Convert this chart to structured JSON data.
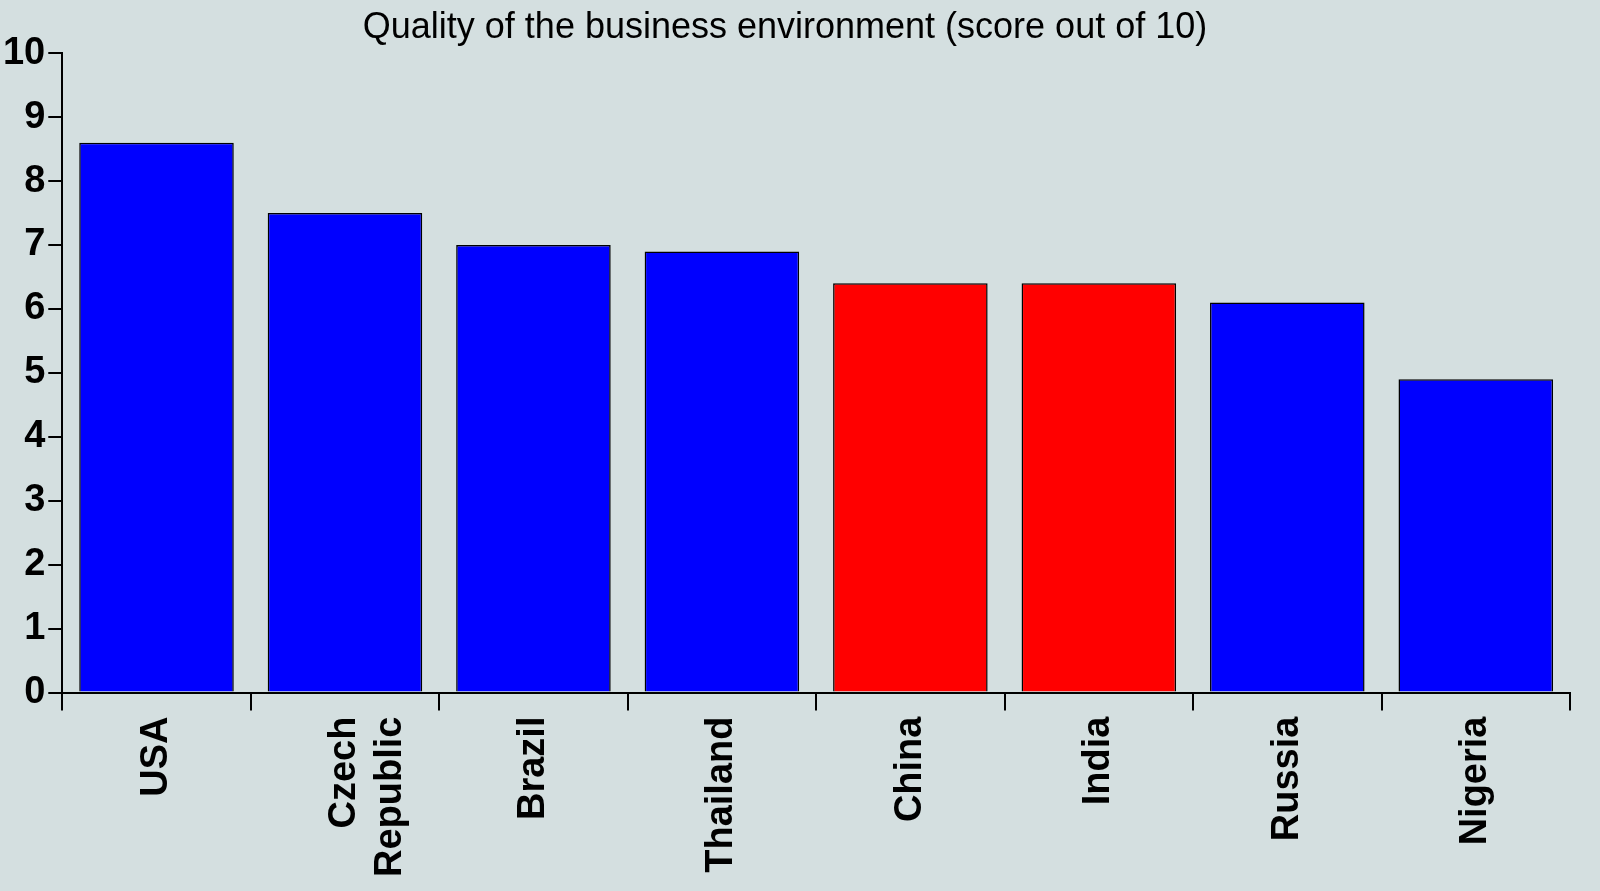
{
  "chart_data": {
    "type": "bar",
    "title": "Quality of the business environment (score out of 10)",
    "categories": [
      "USA",
      "Czech Republic",
      "Brazil",
      "Thailand",
      "China",
      "India",
      "Russia",
      "Nigeria"
    ],
    "values": [
      8.6,
      7.5,
      7.0,
      6.9,
      6.4,
      6.4,
      6.1,
      4.9
    ],
    "colors": [
      "#0000ff",
      "#0000ff",
      "#0000ff",
      "#0000ff",
      "#ff0000",
      "#ff0000",
      "#0000ff",
      "#0000ff"
    ],
    "ylim": [
      0,
      10
    ],
    "yticks": [
      0,
      1,
      2,
      3,
      4,
      5,
      6,
      7,
      8,
      9,
      10
    ],
    "grid": false,
    "legend": false
  }
}
